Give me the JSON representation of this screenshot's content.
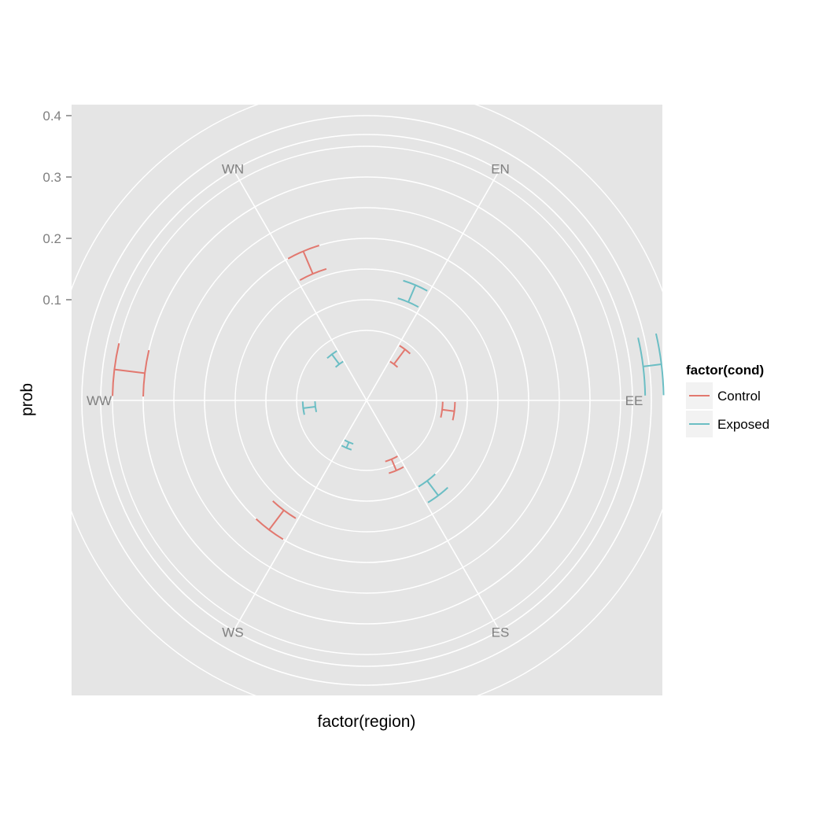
{
  "chart_data": {
    "type": "polar-errorbar",
    "xlabel": "factor(region)",
    "ylabel": "prob",
    "categories": [
      "EE",
      "EN",
      "WN",
      "WW",
      "WS",
      "ES"
    ],
    "y_ticks": [
      "0.1",
      "0.2",
      "0.3",
      "0.4"
    ],
    "legend": {
      "title": "factor(cond)",
      "placement": "right",
      "entries": [
        "Control",
        "Exposed"
      ]
    },
    "series": [
      {
        "name": "Control",
        "color": "#e2786f",
        "errorbars": [
          {
            "category": "EE",
            "low": 0.06,
            "high": 0.08
          },
          {
            "category": "EN",
            "low": 0.01,
            "high": 0.04
          },
          {
            "category": "WN",
            "low": 0.16,
            "high": 0.2
          },
          {
            "category": "WW",
            "low": 0.3,
            "high": 0.35
          },
          {
            "category": "WS",
            "low": 0.16,
            "high": 0.2
          },
          {
            "category": "ES",
            "low": 0.04,
            "high": 0.06
          }
        ]
      },
      {
        "name": "Exposed",
        "color": "#6bbec4",
        "errorbars": [
          {
            "category": "EE",
            "low": 0.39,
            "high": 0.42
          },
          {
            "category": "EN",
            "low": 0.11,
            "high": 0.14
          },
          {
            "category": "WN",
            "low": 0.01,
            "high": 0.03
          },
          {
            "category": "WW",
            "low": 0.02,
            "high": 0.04
          },
          {
            "category": "WS",
            "low": 0.01,
            "high": 0.02
          },
          {
            "category": "ES",
            "low": 0.1,
            "high": 0.13
          }
        ]
      }
    ]
  }
}
